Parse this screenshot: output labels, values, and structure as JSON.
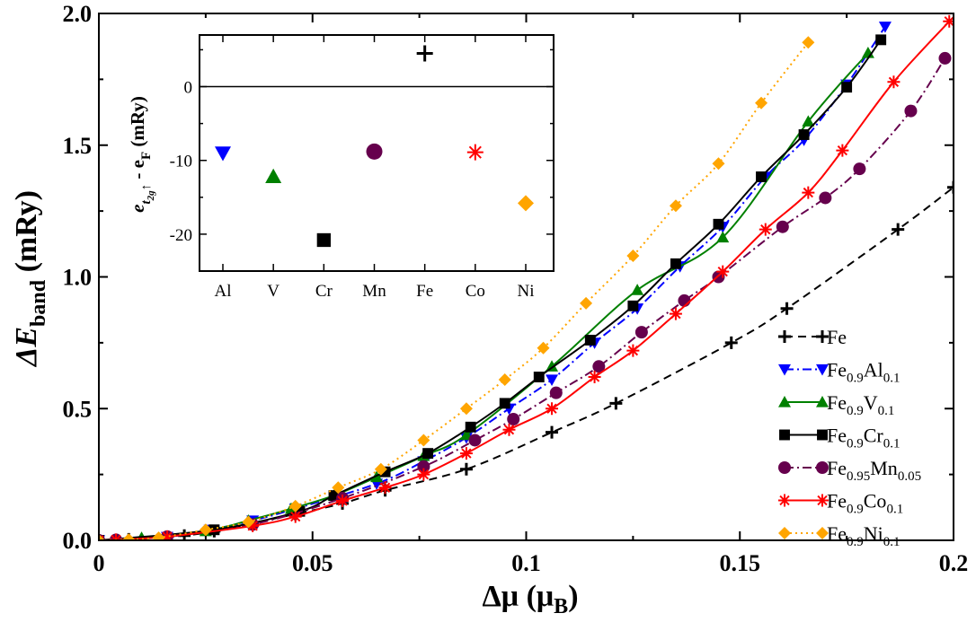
{
  "chart_data": [
    {
      "type": "line",
      "xlabel": "Δμ (μB)",
      "xlabel_main": "Δμ (μ",
      "xlabel_sub": "B",
      "xlabel_end": ")",
      "ylabel": "ΔEband (mRy)",
      "ylabel_main": "ΔE",
      "ylabel_sub": "band",
      "ylabel_end": " (mRy)",
      "xlim": [
        0,
        0.2
      ],
      "ylim": [
        0,
        2.0
      ],
      "x_ticks": [
        0,
        0.05,
        0.1,
        0.15,
        0.2
      ],
      "x_tick_labels": [
        "0",
        "0.05",
        "0.1",
        "0.15",
        "0.2"
      ],
      "y_ticks": [
        0,
        0.5,
        1.0,
        1.5,
        2.0
      ],
      "y_tick_labels": [
        "0.0",
        "0.5",
        "1.0",
        "1.5",
        "2.0"
      ],
      "legend_position": "bottom-right",
      "series": [
        {
          "name": "Fe",
          "label_main": "Fe",
          "label_parts": [],
          "color": "#000000",
          "marker": "plus",
          "dash": "dashed",
          "x": [
            0,
            0.007,
            0.02,
            0.027,
            0.036,
            0.046,
            0.057,
            0.067,
            0.086,
            0.106,
            0.121,
            0.148,
            0.161,
            0.187,
            0.2
          ],
          "y": [
            0,
            0.004,
            0.018,
            0.035,
            0.065,
            0.1,
            0.14,
            0.19,
            0.27,
            0.41,
            0.52,
            0.75,
            0.88,
            1.18,
            1.34
          ]
        },
        {
          "name": "Fe0.9Al0.1",
          "label_main": "Fe",
          "label_parts": [
            [
              "0.9",
              "Al"
            ],
            [
              "0.1",
              ""
            ]
          ],
          "color": "#0000ff",
          "marker": "triangle-down",
          "dash": "dashdot",
          "x": [
            0,
            0.016,
            0.026,
            0.036,
            0.046,
            0.065,
            0.076,
            0.086,
            0.096,
            0.106,
            0.116,
            0.126,
            0.136,
            0.146,
            0.156,
            0.165,
            0.175,
            0.184
          ],
          "y": [
            0,
            0.013,
            0.04,
            0.075,
            0.12,
            0.215,
            0.3,
            0.39,
            0.5,
            0.61,
            0.75,
            0.88,
            1.04,
            1.19,
            1.38,
            1.52,
            1.73,
            1.95
          ]
        },
        {
          "name": "Fe0.9V0.1",
          "label_main": "Fe",
          "label_parts": [
            [
              "0.9",
              "V"
            ],
            [
              "0.1",
              ""
            ]
          ],
          "color": "#008000",
          "marker": "triangle-up",
          "dash": "solid",
          "x": [
            0,
            0.01,
            0.025,
            0.035,
            0.045,
            0.055,
            0.065,
            0.076,
            0.086,
            0.106,
            0.126,
            0.146,
            0.166,
            0.18
          ],
          "y": [
            0,
            0.01,
            0.035,
            0.075,
            0.12,
            0.17,
            0.24,
            0.32,
            0.4,
            0.66,
            0.95,
            1.15,
            1.59,
            1.85
          ]
        },
        {
          "name": "Fe0.9Cr0.1",
          "label_main": "Fe",
          "label_parts": [
            [
              "0.9",
              "Cr"
            ],
            [
              "0.1",
              ""
            ]
          ],
          "color": "#000000",
          "marker": "square",
          "dash": "solid",
          "x": [
            0,
            0.027,
            0.047,
            0.055,
            0.067,
            0.077,
            0.087,
            0.095,
            0.103,
            0.115,
            0.125,
            0.135,
            0.145,
            0.155,
            0.165,
            0.175,
            0.183
          ],
          "y": [
            0,
            0.04,
            0.11,
            0.17,
            0.26,
            0.33,
            0.43,
            0.52,
            0.62,
            0.76,
            0.89,
            1.05,
            1.2,
            1.38,
            1.54,
            1.72,
            1.9
          ]
        },
        {
          "name": "Fe0.95Mn0.05",
          "label_main": "Fe",
          "label_parts": [
            [
              "0.95",
              "Mn"
            ],
            [
              "0.05",
              ""
            ]
          ],
          "color": "#66004d",
          "marker": "circle",
          "dash": "dashdot",
          "x": [
            0,
            0.004,
            0.016,
            0.036,
            0.057,
            0.076,
            0.088,
            0.097,
            0.107,
            0.117,
            0.127,
            0.137,
            0.145,
            0.16,
            0.17,
            0.178,
            0.19,
            0.198
          ],
          "y": [
            0,
            0.002,
            0.014,
            0.06,
            0.16,
            0.28,
            0.38,
            0.46,
            0.56,
            0.66,
            0.79,
            0.91,
            1.0,
            1.19,
            1.3,
            1.41,
            1.63,
            1.83
          ]
        },
        {
          "name": "Fe0.9Co0.1",
          "label_main": "Fe",
          "label_parts": [
            [
              "0.9",
              "Co"
            ],
            [
              "0.1",
              ""
            ]
          ],
          "color": "#ff0000",
          "marker": "asterisk",
          "dash": "solid",
          "x": [
            0,
            0.004,
            0.016,
            0.036,
            0.046,
            0.057,
            0.067,
            0.076,
            0.086,
            0.096,
            0.106,
            0.116,
            0.125,
            0.135,
            0.146,
            0.156,
            0.166,
            0.174,
            0.186,
            0.199
          ],
          "y": [
            0,
            0.002,
            0.014,
            0.055,
            0.09,
            0.15,
            0.2,
            0.25,
            0.33,
            0.42,
            0.5,
            0.62,
            0.72,
            0.86,
            1.02,
            1.18,
            1.32,
            1.48,
            1.74,
            1.97
          ]
        },
        {
          "name": "Fe0.9Ni0.1",
          "label_main": "Fe",
          "label_parts": [
            [
              "0.9",
              "Ni"
            ],
            [
              "0.1",
              ""
            ]
          ],
          "color": "#ffa500",
          "marker": "diamond",
          "dash": "dotted",
          "x": [
            0,
            0.007,
            0.014,
            0.025,
            0.035,
            0.046,
            0.056,
            0.066,
            0.076,
            0.086,
            0.095,
            0.104,
            0.114,
            0.125,
            0.135,
            0.145,
            0.155,
            0.166
          ],
          "y": [
            0,
            0.003,
            0.01,
            0.04,
            0.07,
            0.13,
            0.2,
            0.27,
            0.38,
            0.5,
            0.61,
            0.73,
            0.9,
            1.08,
            1.27,
            1.43,
            1.66,
            1.89
          ]
        }
      ]
    },
    {
      "type": "scatter",
      "ylabel": "e_t2g↑ - e_F (mRy)",
      "ylabel_e": "e",
      "ylabel_t": "t",
      "ylabel_2g": "2g",
      "ylabel_arrow": "↑",
      "ylabel_mid": " - e",
      "ylabel_F": "F",
      "ylabel_unit": " (mRy)",
      "categories": [
        "Al",
        "V",
        "Cr",
        "Mn",
        "Fe",
        "Co",
        "Ni"
      ],
      "ylim": [
        -25,
        7
      ],
      "y_ticks": [
        -20,
        -10,
        0
      ],
      "y_tick_labels": [
        "-20",
        "-10",
        "0"
      ],
      "zero_line": true,
      "points": [
        {
          "category": "Al",
          "value": -9,
          "color": "#0000ff",
          "marker": "triangle-down"
        },
        {
          "category": "V",
          "value": -12.2,
          "color": "#008000",
          "marker": "triangle-up"
        },
        {
          "category": "Cr",
          "value": -20.8,
          "color": "#000000",
          "marker": "square"
        },
        {
          "category": "Mn",
          "value": -8.8,
          "color": "#66004d",
          "marker": "circle"
        },
        {
          "category": "Fe",
          "value": 4.5,
          "color": "#000000",
          "marker": "plus"
        },
        {
          "category": "Co",
          "value": -8.9,
          "color": "#ff0000",
          "marker": "asterisk"
        },
        {
          "category": "Ni",
          "value": -15.8,
          "color": "#ffa500",
          "marker": "diamond"
        }
      ]
    }
  ]
}
